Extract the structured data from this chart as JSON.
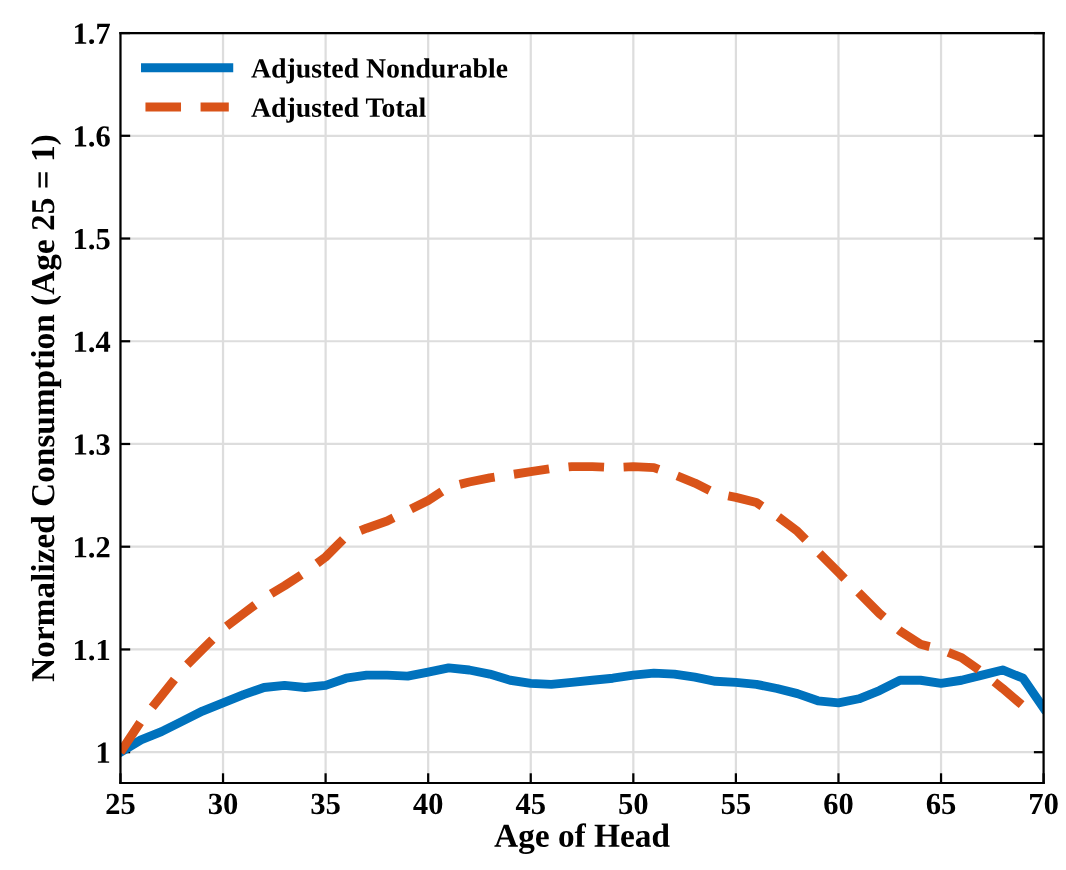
{
  "chart_data": {
    "type": "line",
    "xlabel": "Age of Head",
    "ylabel": "Normalized Consumption (Age 25 = 1)",
    "x": [
      25,
      26,
      27,
      28,
      29,
      30,
      31,
      32,
      33,
      34,
      35,
      36,
      37,
      38,
      39,
      40,
      41,
      42,
      43,
      44,
      45,
      46,
      47,
      48,
      49,
      50,
      51,
      52,
      53,
      54,
      55,
      56,
      57,
      58,
      59,
      60,
      61,
      62,
      63,
      64,
      65,
      66,
      67,
      68,
      69,
      70
    ],
    "series": [
      {
        "name": "Adjusted Nondurable",
        "color": "#0072bd",
        "line_style": "solid",
        "values": [
          1.0,
          1.012,
          1.02,
          1.03,
          1.04,
          1.048,
          1.056,
          1.063,
          1.065,
          1.063,
          1.065,
          1.072,
          1.075,
          1.075,
          1.074,
          1.078,
          1.082,
          1.08,
          1.076,
          1.07,
          1.067,
          1.066,
          1.068,
          1.07,
          1.072,
          1.075,
          1.077,
          1.076,
          1.073,
          1.069,
          1.068,
          1.066,
          1.062,
          1.057,
          1.05,
          1.048,
          1.052,
          1.06,
          1.07,
          1.07,
          1.067,
          1.07,
          1.075,
          1.08,
          1.072,
          1.043
        ]
      },
      {
        "name": "Adjusted Total",
        "color": "#d95319",
        "line_style": "dashed",
        "values": [
          1.0,
          1.03,
          1.055,
          1.08,
          1.1,
          1.12,
          1.135,
          1.15,
          1.162,
          1.175,
          1.19,
          1.21,
          1.218,
          1.225,
          1.235,
          1.245,
          1.258,
          1.263,
          1.267,
          1.27,
          1.273,
          1.276,
          1.278,
          1.278,
          1.277,
          1.278,
          1.277,
          1.27,
          1.262,
          1.252,
          1.248,
          1.243,
          1.23,
          1.215,
          1.195,
          1.175,
          1.155,
          1.135,
          1.118,
          1.105,
          1.1,
          1.092,
          1.078,
          1.062,
          1.045,
          null
        ]
      }
    ],
    "xlim": [
      25,
      70
    ],
    "xticks": [
      25,
      30,
      35,
      40,
      45,
      50,
      55,
      60,
      65,
      70
    ],
    "ylim": [
      0.97,
      1.7
    ],
    "yticks": [
      {
        "value": 1,
        "label": "1"
      },
      1.1,
      1.2,
      1.3,
      1.4,
      1.5,
      1.6,
      1.7
    ],
    "grid": true,
    "legend": "top left"
  }
}
